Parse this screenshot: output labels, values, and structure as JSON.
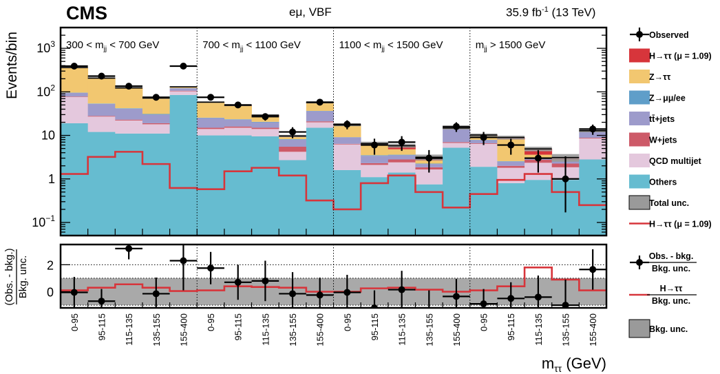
{
  "header": {
    "experiment": "CMS",
    "channel": "eμ, VBF",
    "lumi_value": "35.9 fb",
    "lumi_exp": "-1",
    "lumi_energy": " (13 TeV)"
  },
  "colors": {
    "signal": "#d7353b",
    "ztautau": "#f2c770",
    "zll": "#5f9ec9",
    "ttbar": "#9d9bcb",
    "wjets": "#cd5a68",
    "qcd": "#e4c8dd",
    "others": "#66bcd0",
    "total_unc": "#9a9a9a",
    "signal_line": "#d7353b"
  },
  "chart_data": [
    {
      "type": "bar",
      "stacked": true,
      "yscale": "log",
      "ylabel": "Events/bin",
      "ylim": [
        0.05,
        3000
      ],
      "yticks": [
        {
          "v": 0.1,
          "b": "10",
          "e": "−1"
        },
        {
          "v": 1,
          "b": "1",
          "e": ""
        },
        {
          "v": 10,
          "b": "10",
          "e": ""
        },
        {
          "v": 100,
          "b": "10",
          "e": "2"
        },
        {
          "v": 1000,
          "b": "10",
          "e": "3"
        }
      ],
      "categories": [
        "0-95",
        "95-115",
        "115-135",
        "135-155",
        "155-400",
        "0-95",
        "95-115",
        "115-135",
        "135-155",
        "155-400",
        "0-95",
        "95-115",
        "115-135",
        "135-155",
        "155-400",
        "0-95",
        "95-115",
        "115-135",
        "135-155",
        "155-400"
      ],
      "regions": [
        {
          "pre": "300 < m",
          "sub": "jj",
          "post": " < 700 GeV"
        },
        {
          "pre": "700 < m",
          "sub": "jj",
          "post": " < 1100 GeV"
        },
        {
          "pre": "1100 < m",
          "sub": "jj",
          "post": " < 1500 GeV"
        },
        {
          "pre": "m",
          "sub": "jj",
          "post": " > 1500 GeV"
        }
      ],
      "series": [
        {
          "key": "others",
          "name": "Others",
          "values": [
            19,
            12,
            11,
            11,
            85,
            10,
            10,
            9.5,
            2.7,
            15,
            1.6,
            1.1,
            1.4,
            0.75,
            5.2,
            1.9,
            0.8,
            0.95,
            0.95,
            2.8
          ]
        },
        {
          "key": "qcd",
          "name": "QCD multijet",
          "values": [
            57,
            15,
            11,
            7,
            18,
            4,
            5,
            4.5,
            1.5,
            5,
            4.6,
            1.0,
            1.0,
            0.9,
            1.5,
            4.5,
            1.0,
            1.4,
            0.9,
            5.7
          ]
        },
        {
          "key": "wjets",
          "name": "W+jets",
          "values": [
            2,
            1,
            1,
            1,
            3,
            1,
            1,
            1,
            1.3,
            1,
            0.2,
            0.2,
            0.4,
            0.2,
            0.3,
            0.2,
            0.2,
            0.4,
            0.4,
            0.3
          ]
        },
        {
          "key": "ttbar",
          "name": "tt̄+jets",
          "values": [
            17,
            25,
            18,
            11,
            15,
            10,
            7,
            5,
            2.5,
            15,
            2.6,
            1.1,
            0.7,
            0.35,
            7,
            1.2,
            0.5,
            0.3,
            0.3,
            3.2
          ]
        },
        {
          "key": "zll",
          "name": "Z→μμ/ee",
          "values": [
            1,
            1,
            1,
            1,
            1,
            0.5,
            0.5,
            0.5,
            0.2,
            0.5,
            0.1,
            0.1,
            0.1,
            0.05,
            0.1,
            0.1,
            0.05,
            0.05,
            0.05,
            0.1
          ]
        },
        {
          "key": "ztautau",
          "name": "Z→ττ",
          "values": [
            264,
            151,
            78,
            39,
            8,
            32,
            24,
            7,
            1,
            20,
            8,
            2.5,
            1.2,
            0.4,
            0.5,
            2,
            5.5,
            0.5,
            0.1,
            0.5
          ]
        },
        {
          "key": "signal",
          "name": "H→ττ (μ = 1.09)",
          "values": [
            1,
            2,
            3,
            2,
            0.5,
            0.5,
            1.5,
            1.5,
            0.5,
            0.1,
            0.2,
            0.5,
            1,
            0.5,
            0.2,
            0.3,
            0.9,
            1.3,
            0.4,
            0.2
          ]
        }
      ],
      "total_unc": [
        0.03,
        0.03,
        0.03,
        0.04,
        0.03,
        0.04,
        0.04,
        0.05,
        0.06,
        0.04,
        0.06,
        0.1,
        0.1,
        0.15,
        0.08,
        0.08,
        0.1,
        0.12,
        0.2,
        0.08
      ],
      "observed": {
        "name": "Observed",
        "values": [
          390,
          230,
          135,
          75,
          390,
          75,
          50,
          27,
          12,
          58,
          18,
          6,
          7,
          3,
          16,
          9,
          6,
          3,
          1,
          14
        ],
        "err_lo": [
          20,
          15,
          12,
          8.6,
          20,
          8.6,
          7,
          5.2,
          3.4,
          7.6,
          4.2,
          2.4,
          2.6,
          1.6,
          4,
          3,
          2.4,
          1.6,
          0.83,
          3.7
        ],
        "err_hi": [
          20,
          15,
          12,
          8.6,
          20,
          8.6,
          7,
          5.2,
          3.4,
          7.6,
          4.2,
          2.4,
          2.6,
          1.6,
          4,
          3,
          2.4,
          1.6,
          2.3,
          3.7
        ]
      },
      "signal_line": {
        "name": "H→ττ (μ = 1.09)",
        "values": [
          1.3,
          3.2,
          4.2,
          2.2,
          0.62,
          0.58,
          1.5,
          1.8,
          1.2,
          0.32,
          0.2,
          0.8,
          1.2,
          0.5,
          0.22,
          0.45,
          0.95,
          1.3,
          0.5,
          0.25
        ]
      },
      "legend": [
        {
          "key": "observed",
          "label": "Observed",
          "style": "marker"
        },
        {
          "key": "signal",
          "label": "H→ττ (μ = 1.09)",
          "style": "box"
        },
        {
          "key": "ztautau",
          "label": "Z→ττ",
          "style": "box"
        },
        {
          "key": "zll",
          "label": "Z→μμ/ee",
          "style": "box"
        },
        {
          "key": "ttbar",
          "label": "tt̄+jets",
          "style": "box"
        },
        {
          "key": "wjets",
          "label": "W+jets",
          "style": "box"
        },
        {
          "key": "qcd",
          "label": "QCD multijet",
          "style": "box"
        },
        {
          "key": "others",
          "label": "Others",
          "style": "box"
        },
        {
          "key": "total_unc",
          "label": "Total unc.",
          "style": "box"
        },
        {
          "key": "signal_line",
          "label": "H→ττ (μ = 1.09)",
          "style": "line"
        }
      ],
      "legend_position": "right"
    },
    {
      "type": "scatter",
      "ylabel_num": "(Obs. - bkg.)",
      "ylabel_den": "Bkg. unc.",
      "ylim": [
        -1.2,
        3.5
      ],
      "yticks": [
        0,
        2
      ],
      "ytick_labels": [
        "0",
        "2"
      ],
      "dotted_levels": [
        -1,
        1,
        2
      ],
      "xlabel": "m",
      "xlabel_sub": "ττ",
      "xlabel_unit": " (GeV)",
      "pulls": [
        -0.05,
        -0.7,
        3.2,
        -0.15,
        2.3,
        1.75,
        0.7,
        0.8,
        -0.15,
        -0.25,
        -0.05,
        -1.2,
        0.15,
        -1.4,
        -0.35,
        -0.9,
        -0.5,
        -0.4,
        -1.0,
        1.65
      ],
      "pull_err": [
        1.15,
        0.9,
        0.8,
        1.2,
        2.2,
        1.2,
        1.3,
        1.5,
        1.6,
        1.3,
        1.3,
        1.3,
        1.4,
        1.5,
        1.3,
        1.1,
        1.2,
        1.6,
        1.9,
        1.5
      ],
      "signal_ratio": [
        0.1,
        0.3,
        0.55,
        0.3,
        0.05,
        0.1,
        0.4,
        0.35,
        0.3,
        0.0,
        0.0,
        0.25,
        0.3,
        0.15,
        0.0,
        0.1,
        0.4,
        1.8,
        0.9,
        0.1
      ],
      "bkg_unc_band": [
        -1,
        1
      ],
      "legend": [
        {
          "key": "pull",
          "num": "Obs. - bkg.",
          "den": "Bkg. unc.",
          "style": "marker"
        },
        {
          "key": "sig",
          "num": "H→ττ",
          "den": "Bkg. unc.",
          "style": "line"
        },
        {
          "key": "band",
          "label": "Bkg. unc.",
          "style": "box"
        }
      ]
    }
  ]
}
